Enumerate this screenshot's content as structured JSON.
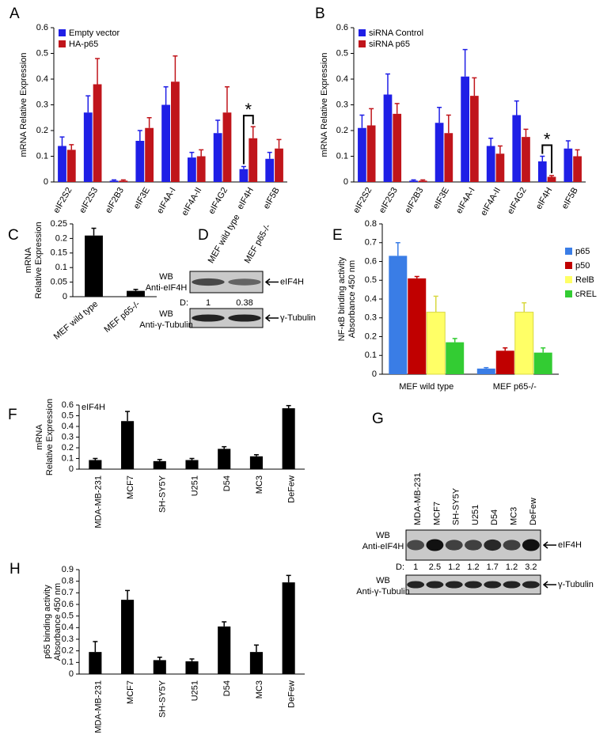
{
  "chart_data": [
    {
      "type": "bar",
      "panel": "A",
      "y_label": [
        "mRNA Relative Expression"
      ],
      "categories": [
        "eIF2S2",
        "eIF2S3",
        "eIF2B3",
        "eIF3E",
        "eIF4A-I",
        "eIF4A-II",
        "eIF4G2",
        "eIF4H",
        "eIF5B"
      ],
      "series": [
        {
          "name": "Empty vector",
          "color": "#1f1fe6",
          "values": [
            0.14,
            0.27,
            0.005,
            0.16,
            0.3,
            0.095,
            0.19,
            0.05,
            0.09
          ],
          "errors": [
            0.035,
            0.065,
            0.003,
            0.04,
            0.07,
            0.02,
            0.05,
            0.01,
            0.025
          ]
        },
        {
          "name": "HA-p65",
          "color": "#c0151b",
          "values": [
            0.125,
            0.38,
            0.005,
            0.21,
            0.39,
            0.1,
            0.27,
            0.17,
            0.13
          ],
          "errors": [
            0.02,
            0.1,
            0.003,
            0.04,
            0.1,
            0.025,
            0.1,
            0.045,
            0.035
          ]
        }
      ],
      "ylim": [
        0,
        0.6
      ],
      "yticks": [
        0,
        0.1,
        0.2,
        0.3,
        0.4,
        0.5,
        0.6
      ],
      "legend": "upper left",
      "grid": false,
      "annotation": "*"
    },
    {
      "type": "bar",
      "panel": "B",
      "y_label": [
        "mRNA Relative Expression"
      ],
      "categories": [
        "eIF2S2",
        "eIF2S3",
        "eIF2B3",
        "eIF3E",
        "eIF4A-I",
        "eIF4A-II",
        "eIF4G2",
        "eIF4H",
        "eIF5B"
      ],
      "series": [
        {
          "name": "siRNA Control",
          "color": "#1f1fe6",
          "values": [
            0.21,
            0.34,
            0.005,
            0.23,
            0.41,
            0.14,
            0.26,
            0.08,
            0.13
          ],
          "errors": [
            0.05,
            0.08,
            0.003,
            0.06,
            0.105,
            0.03,
            0.055,
            0.02,
            0.03
          ]
        },
        {
          "name": "siRNA p65",
          "color": "#c0151b",
          "values": [
            0.22,
            0.265,
            0.005,
            0.19,
            0.335,
            0.11,
            0.175,
            0.02,
            0.1
          ],
          "errors": [
            0.065,
            0.04,
            0.003,
            0.07,
            0.07,
            0.03,
            0.03,
            0.005,
            0.025
          ]
        }
      ],
      "ylim": [
        0,
        0.6
      ],
      "yticks": [
        0,
        0.1,
        0.2,
        0.3,
        0.4,
        0.5,
        0.6
      ],
      "legend": "upper left",
      "grid": false,
      "annotation": "*"
    },
    {
      "type": "bar",
      "panel": "C",
      "y_label": [
        "mRNA",
        "Relative Expression"
      ],
      "categories": [
        "MEF wild type",
        "MEF p65-/-"
      ],
      "values": [
        0.21,
        0.02
      ],
      "errors": [
        0.025,
        0.005
      ],
      "color": "#000000",
      "ylim": [
        0,
        0.25
      ],
      "yticks": [
        0,
        0.05,
        0.1,
        0.15,
        0.2,
        0.25
      ],
      "grid": false
    },
    {
      "type": "bar",
      "panel": "E",
      "y_label": [
        "NF-κB binding activity",
        "Absorbance 450 nm"
      ],
      "categories": [
        "MEF wild type",
        "MEF p65-/-"
      ],
      "series": [
        {
          "name": "p65",
          "color": "#3a7de6",
          "values": [
            0.63,
            0.03
          ],
          "errors": [
            0.07,
            0.005
          ]
        },
        {
          "name": "p50",
          "color": "#c00000",
          "values": [
            0.51,
            0.125
          ],
          "errors": [
            0.01,
            0.015
          ]
        },
        {
          "name": "RelB",
          "color": "#ffff66",
          "values": [
            0.33,
            0.33
          ],
          "errors": [
            0.085,
            0.05
          ]
        },
        {
          "name": "cREL",
          "color": "#33cc33",
          "values": [
            0.17,
            0.115
          ],
          "errors": [
            0.02,
            0.025
          ]
        }
      ],
      "ylim": [
        0,
        0.8
      ],
      "yticks": [
        0,
        0.1,
        0.2,
        0.3,
        0.4,
        0.5,
        0.6,
        0.7,
        0.8
      ],
      "legend": "upper right",
      "grid": false
    },
    {
      "type": "bar",
      "panel": "F",
      "y_label": [
        "mRNA",
        "Relative Expression"
      ],
      "annotation": "eIF4H",
      "categories": [
        "MDA-MB-231",
        "MCF7",
        "SH-SY5Y",
        "U251",
        "D54",
        "MC3",
        "DeFew"
      ],
      "values": [
        0.085,
        0.45,
        0.075,
        0.085,
        0.19,
        0.12,
        0.57
      ],
      "errors": [
        0.015,
        0.09,
        0.015,
        0.015,
        0.02,
        0.015,
        0.025
      ],
      "color": "#000000",
      "ylim": [
        0,
        0.6
      ],
      "yticks": [
        0,
        0.1,
        0.2,
        0.3,
        0.4,
        0.5,
        0.6
      ],
      "grid": false
    },
    {
      "type": "bar",
      "panel": "H",
      "y_label": [
        "p65 binding activity",
        "Absorbance 450 nm"
      ],
      "categories": [
        "MDA-MB-231",
        "MCF7",
        "SH-SY5Y",
        "U251",
        "D54",
        "MC3",
        "DeFew"
      ],
      "values": [
        0.19,
        0.64,
        0.12,
        0.11,
        0.41,
        0.19,
        0.79
      ],
      "errors": [
        0.09,
        0.08,
        0.025,
        0.02,
        0.04,
        0.06,
        0.06
      ],
      "color": "#000000",
      "ylim": [
        0,
        0.9
      ],
      "yticks": [
        0,
        0.1,
        0.2,
        0.3,
        0.4,
        0.5,
        0.6,
        0.7,
        0.8,
        0.9
      ],
      "grid": false
    }
  ],
  "blots": [
    {
      "panel": "D",
      "lanes": [
        "MEF wild type",
        "MEF p65-/-"
      ],
      "rows": [
        {
          "label": [
            "WB",
            "Anti-eIF4H"
          ],
          "band": "eIF4H"
        },
        {
          "label": [
            "WB",
            "Anti-γ-Tubulin"
          ],
          "band": "γ-Tubulin"
        }
      ],
      "densitometry_label": "D:",
      "densitometry": [
        1,
        0.38
      ]
    },
    {
      "panel": "G",
      "lanes": [
        "MDA-MB-231",
        "MCF7",
        "SH-SY5Y",
        "U251",
        "D54",
        "MC3",
        "DeFew"
      ],
      "rows": [
        {
          "label": [
            "WB",
            "Anti-eIF4H"
          ],
          "band": "eIF4H"
        },
        {
          "label": [
            "WB",
            "Anti-γ-Tubulin"
          ],
          "band": "γ-Tubulin"
        }
      ],
      "densitometry_label": "D:",
      "densitometry": [
        1,
        2.5,
        1.2,
        1.2,
        1.7,
        1.2,
        3.2
      ]
    }
  ]
}
